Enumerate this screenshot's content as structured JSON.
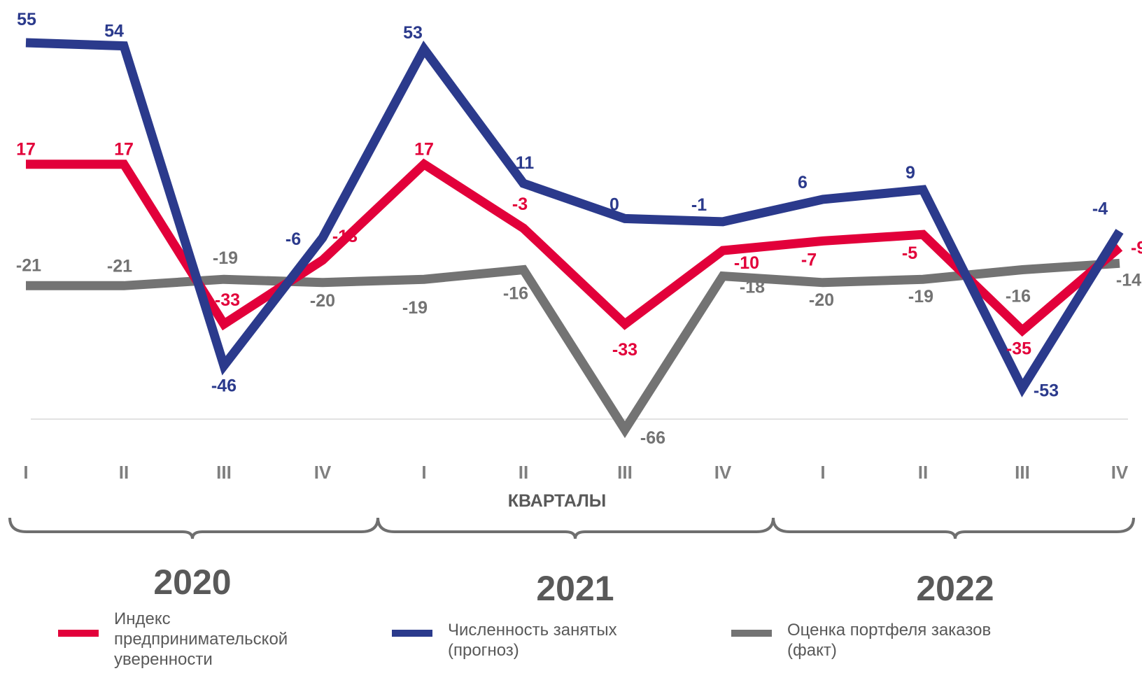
{
  "chart_data": {
    "type": "line",
    "categories": [
      "I",
      "II",
      "III",
      "IV",
      "I",
      "II",
      "III",
      "IV",
      "I",
      "II",
      "III",
      "IV"
    ],
    "xlabel": "КВАРТАЛЫ",
    "years": [
      "2020",
      "2021",
      "2022"
    ],
    "series": [
      {
        "name": "Индекс\nпредпринимательской\nуверенности",
        "color": "#e2003a",
        "values": [
          17,
          17,
          -33,
          -13,
          17,
          -3,
          -33,
          -10,
          -7,
          -5,
          -35,
          -9
        ],
        "labels": [
          "17",
          "17",
          "-33",
          "-13",
          "17",
          "-3",
          "-33",
          "-10",
          "-7",
          "-5",
          "-35",
          "-9"
        ]
      },
      {
        "name": "Численность занятых\n(прогноз)",
        "color": "#2b3a8c",
        "values": [
          55,
          54,
          -46,
          -6,
          53,
          11,
          0,
          -1,
          6,
          9,
          -53,
          -4
        ],
        "labels": [
          "55",
          "54",
          "-46",
          "-6",
          "53",
          "11",
          "0",
          "-1",
          "6",
          "9",
          "-53",
          "-4"
        ]
      },
      {
        "name": "Оценка портфеля заказов\n (факт)",
        "color": "#737373",
        "values": [
          -21,
          -21,
          -19,
          -20,
          -19,
          -16,
          -66,
          -18,
          -20,
          -19,
          -16,
          -14
        ],
        "labels": [
          "-21",
          "-21",
          "-19",
          "-20",
          "-19",
          "-16",
          "-66",
          "-18",
          "-20",
          "-19",
          "-16",
          "-14"
        ]
      }
    ],
    "ylim": [
      -66,
      55
    ],
    "grid": false,
    "legend": "bottom"
  }
}
